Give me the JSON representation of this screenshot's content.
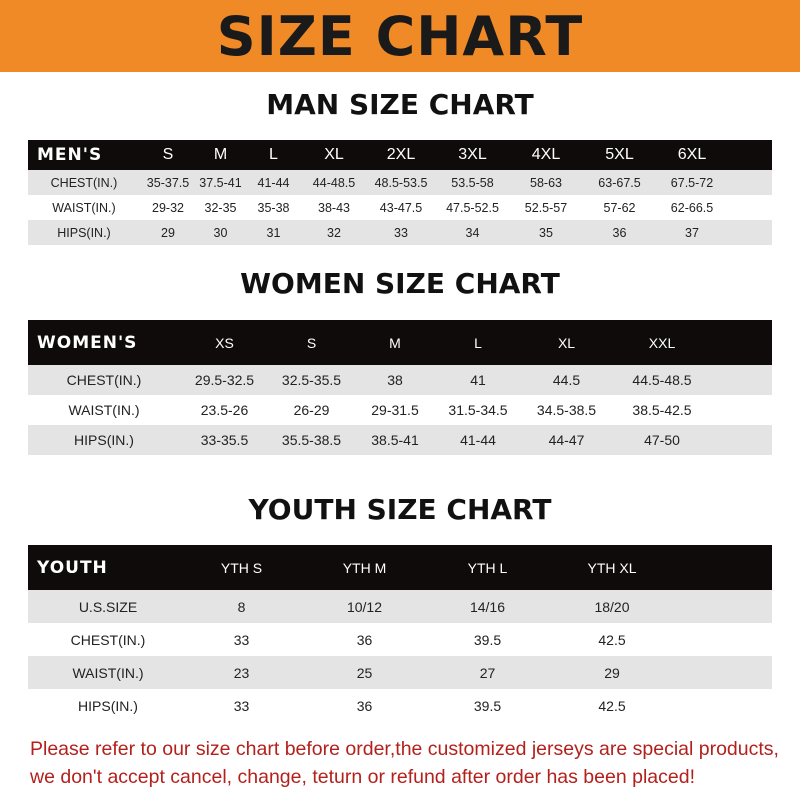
{
  "banner": {
    "title": "SIZE CHART",
    "color": "#ef8a26"
  },
  "men": {
    "title": "MAN SIZE CHART",
    "header": [
      "MEN'S",
      "S",
      "M",
      "L",
      "XL",
      "2XL",
      "3XL",
      "4XL",
      "5XL",
      "6XL"
    ],
    "rows": [
      [
        "CHEST(IN.)",
        "35-37.5",
        "37.5-41",
        "41-44",
        "44-48.5",
        "48.5-53.5",
        "53.5-58",
        "58-63",
        "63-67.5",
        "67.5-72"
      ],
      [
        "WAIST(IN.)",
        "29-32",
        "32-35",
        "35-38",
        "38-43",
        "43-47.5",
        "47.5-52.5",
        "52.5-57",
        "57-62",
        "62-66.5"
      ],
      [
        "HIPS(IN.)",
        "29",
        "30",
        "31",
        "32",
        "33",
        "34",
        "35",
        "36",
        "37"
      ]
    ]
  },
  "women": {
    "title": "WOMEN SIZE CHART",
    "header": [
      "WOMEN'S",
      "XS",
      "S",
      "M",
      "L",
      "XL",
      "XXL"
    ],
    "rows": [
      [
        "CHEST(IN.)",
        "29.5-32.5",
        "32.5-35.5",
        "38",
        "41",
        "44.5",
        "44.5-48.5"
      ],
      [
        "WAIST(IN.)",
        "23.5-26",
        "26-29",
        "29-31.5",
        "31.5-34.5",
        "34.5-38.5",
        "38.5-42.5"
      ],
      [
        "HIPS(IN.)",
        "33-35.5",
        "35.5-38.5",
        "38.5-41",
        "41-44",
        "44-47",
        "47-50"
      ]
    ]
  },
  "youth": {
    "title": "YOUTH SIZE CHART",
    "header": [
      "YOUTH",
      "YTH S",
      "YTH M",
      "YTH L",
      "YTH XL"
    ],
    "rows": [
      [
        "U.S.SIZE",
        "8",
        "10/12",
        "14/16",
        "18/20"
      ],
      [
        "CHEST(IN.)",
        "33",
        "36",
        "39.5",
        "42.5"
      ],
      [
        "WAIST(IN.)",
        "23",
        "25",
        "27",
        "29"
      ],
      [
        "HIPS(IN.)",
        "33",
        "36",
        "39.5",
        "42.5"
      ]
    ]
  },
  "note": {
    "line1": "Please refer to our size chart before order,the customized jerseys are special products,",
    "line2": "we don't accept cancel, change, teturn or refund after order has been placed!",
    "color": "#b3211d"
  }
}
